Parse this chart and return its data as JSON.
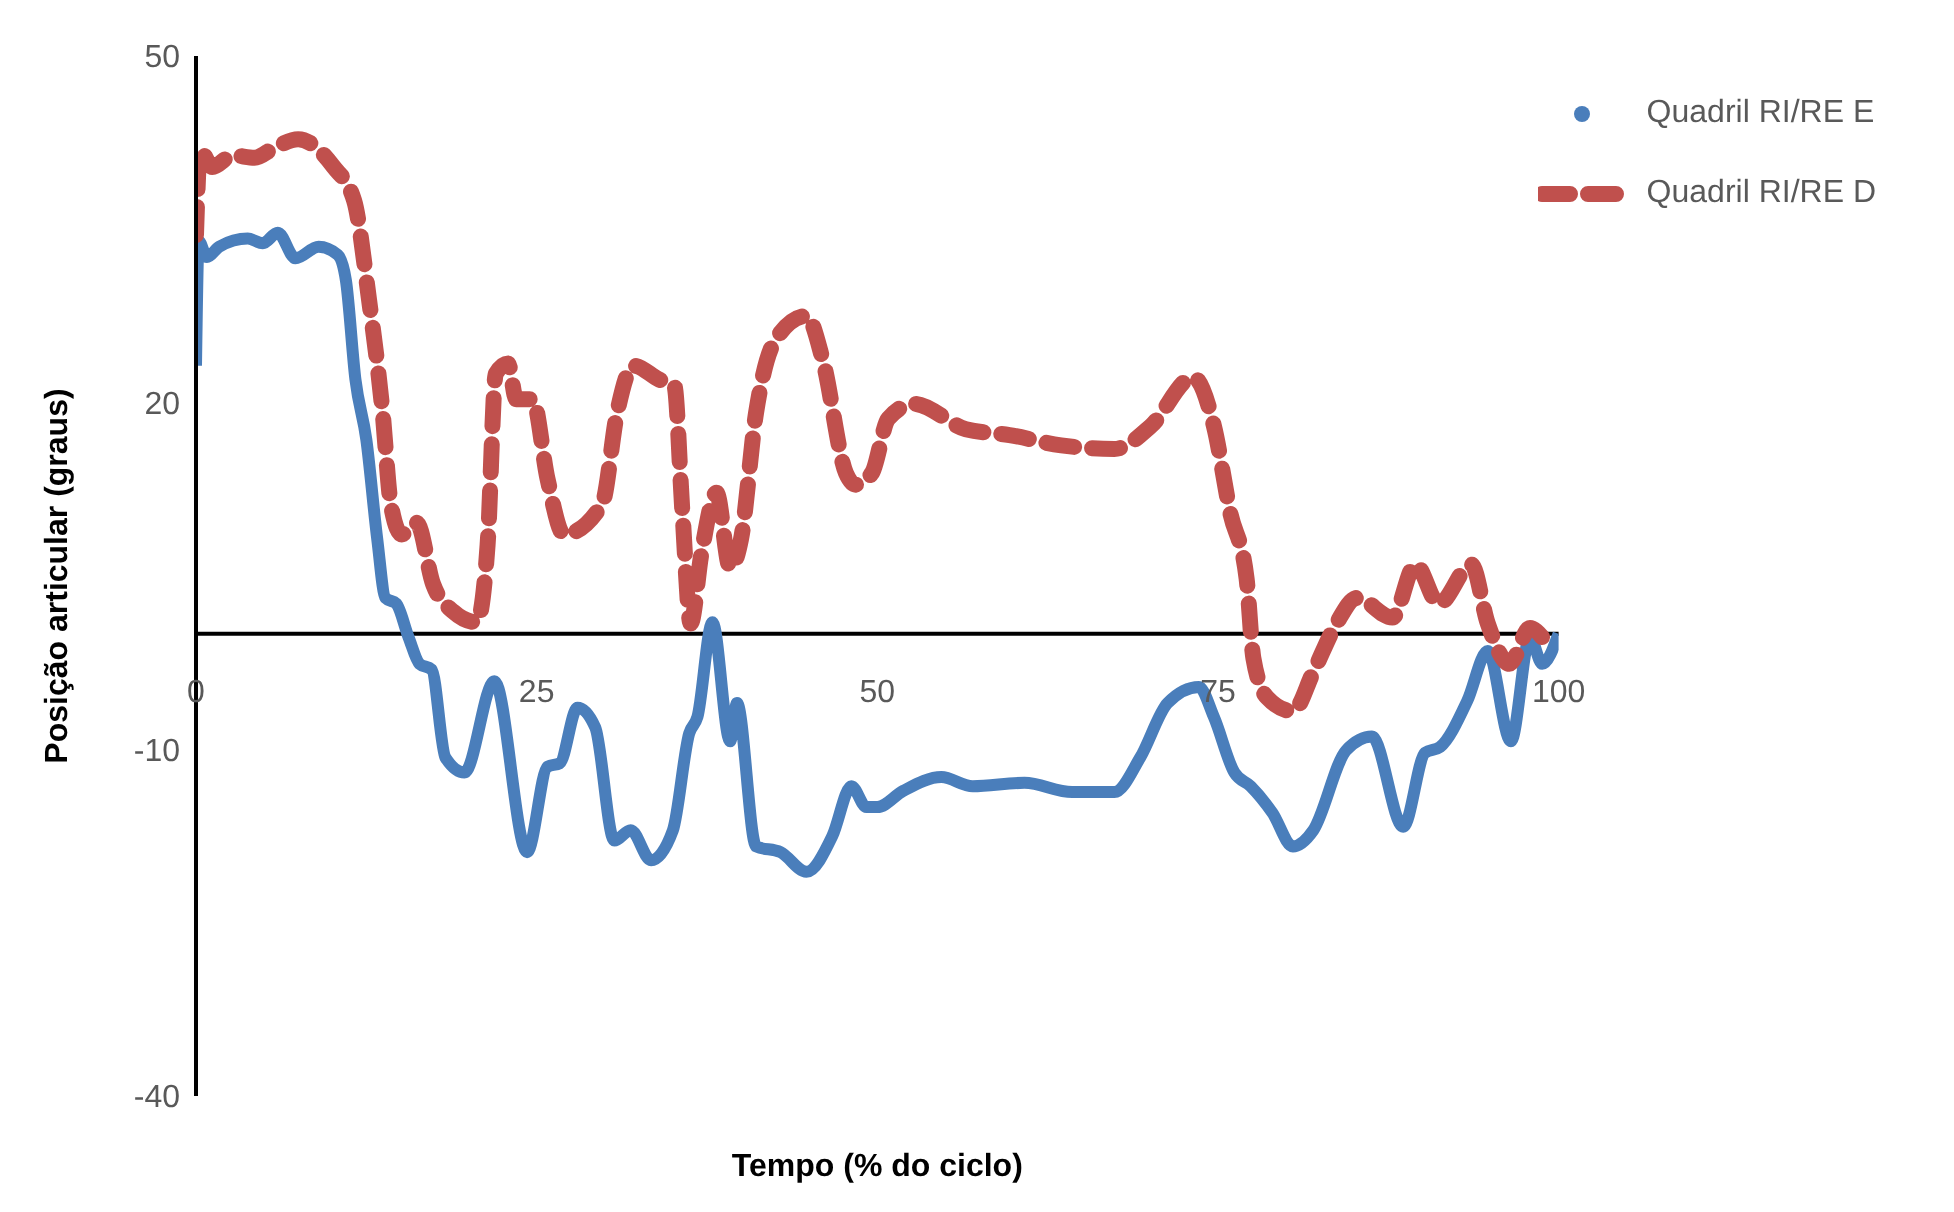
{
  "chart_data": {
    "type": "line",
    "xlabel": "Tempo (% do ciclo)",
    "ylabel": "Posição articular (graus)",
    "xlim": [
      0,
      100
    ],
    "xticks": [
      0,
      25,
      50,
      75,
      100
    ],
    "ylim": [
      -40,
      50
    ],
    "yticks": [
      -40,
      -10,
      20,
      50
    ],
    "legend": "top right",
    "series": [
      {
        "name": "Quadril RI/RE E",
        "color": "#4a7ebb",
        "line_style": "solid",
        "x": [
          0,
          0.2,
          0.8,
          1.7,
          3.8,
          4.9,
          6,
          7.3,
          9,
          10.4,
          11,
          11.7,
          12.5,
          13.3,
          13.9,
          14.7,
          15.6,
          16.4,
          17.3,
          18.3,
          19.7,
          21.9,
          24.3,
          25.8,
          26.7,
          28,
          29.3,
          30.7,
          31.9,
          33.4,
          35,
          36.2,
          36.8,
          37.9,
          39.2,
          39.7,
          41.1,
          42.9,
          44.8,
          46.7,
          48.1,
          49.2,
          50,
          51.9,
          54.7,
          57,
          60.8,
          64.3,
          67.4,
          69.3,
          71.3,
          73.6,
          74.7,
          76.2,
          77.4,
          79,
          80.5,
          82,
          84.4,
          86.3,
          88.6,
          90.2,
          91.3,
          93.3,
          94.8,
          96.5,
          97.9,
          98.8,
          100
        ],
        "values": [
          23.2,
          34,
          32.6,
          33.5,
          34.2,
          33.8,
          34.7,
          32.5,
          33.5,
          32.8,
          30.6,
          22,
          16.8,
          8.2,
          3.1,
          2.6,
          -0.3,
          -2.6,
          -3.1,
          -10.7,
          -12,
          -4.1,
          -18.9,
          -11.5,
          -11.2,
          -6.4,
          -8.1,
          -17.9,
          -17,
          -19.6,
          -17,
          -8.6,
          -7.2,
          1,
          -9.3,
          -6,
          -18.4,
          -18.9,
          -20.6,
          -17.5,
          -13.2,
          -15,
          -15,
          -13.6,
          -12.4,
          -13.2,
          -12.9,
          -13.7,
          -13.7,
          -10.7,
          -6,
          -4.6,
          -7.2,
          -12,
          -13.2,
          -15.5,
          -18.4,
          -17,
          -10.1,
          -8.9,
          -16.7,
          -10.3,
          -9.8,
          -5.8,
          -1.5,
          -9.3,
          -0.3,
          -2.6,
          0
        ]
      },
      {
        "name": "Quadril RI/RE D",
        "color": "#c0504d",
        "line_style": "dashed",
        "x": [
          0,
          0.3,
          1.2,
          2.7,
          4.3,
          5.8,
          7.5,
          10.1,
          11.6,
          12.7,
          13.7,
          14.3,
          15.1,
          16.2,
          17.4,
          18.9,
          20.6,
          21.4,
          22,
          22.9,
          23.5,
          24.7,
          25.8,
          27,
          29.8,
          30.9,
          32.1,
          34,
          35.1,
          35.7,
          36.3,
          37.1,
          38.2,
          39.2,
          40,
          41.1,
          42.5,
          44.8,
          46,
          47.7,
          48.4,
          49.6,
          50.8,
          52.7,
          56.5,
          59.7,
          63.5,
          67.4,
          70.1,
          73.2,
          74.7,
          75.9,
          77.1,
          77.6,
          78.6,
          80.5,
          82,
          83.7,
          85.2,
          87.8,
          89.5,
          91.2,
          93.6,
          94.8,
          96.4,
          97.9,
          98.8
        ],
        "values": [
          34.5,
          41.8,
          40.4,
          41.4,
          41.2,
          42.1,
          42.8,
          40.4,
          37.5,
          28.9,
          19.1,
          11.2,
          8.6,
          9.6,
          4.3,
          1.9,
          1,
          7.7,
          22.5,
          23.4,
          20.3,
          20.3,
          13.4,
          8.6,
          11.2,
          19.1,
          23.2,
          22,
          21.5,
          10.5,
          0.9,
          7,
          12.2,
          5.7,
          8.2,
          19.1,
          25.4,
          27.5,
          23.7,
          13.9,
          12.9,
          13.9,
          18.6,
          19.9,
          17.7,
          17.2,
          16.3,
          16,
          18,
          22.2,
          18,
          10.5,
          4.8,
          -2.1,
          -5.5,
          -6.7,
          -3.3,
          0.9,
          3.1,
          1.4,
          6,
          2.6,
          6,
          0.9,
          -2.6,
          0.5,
          -0.3
        ]
      }
    ]
  }
}
